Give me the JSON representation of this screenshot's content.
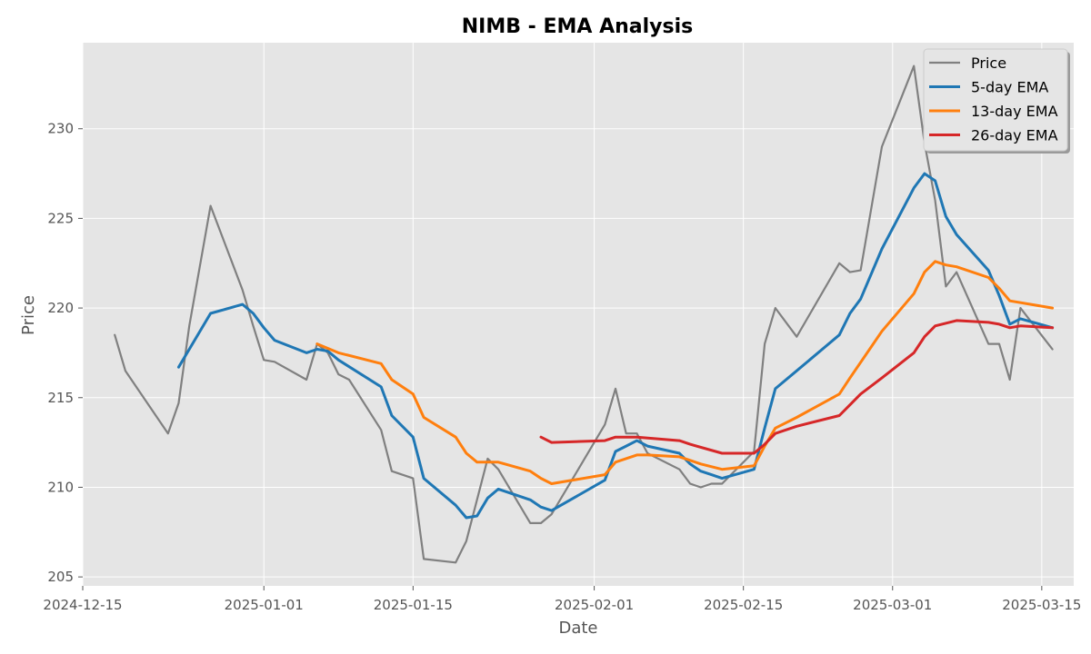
{
  "chart_data": {
    "type": "line",
    "title": "NIMB - EMA Analysis",
    "xlabel": "Date",
    "ylabel": "Price",
    "x_type": "date",
    "xlim": [
      "2024-12-15",
      "2025-03-18"
    ],
    "ylim": [
      204.5,
      234.8
    ],
    "x_ticks": [
      "2024-12-15",
      "2025-01-01",
      "2025-01-15",
      "2025-02-01",
      "2025-02-15",
      "2025-03-01",
      "2025-03-15"
    ],
    "y_ticks": [
      205,
      210,
      215,
      220,
      225,
      230
    ],
    "grid": true,
    "legend_position": "top-right",
    "background_color": "#E5E5E5",
    "series": [
      {
        "name": "Price",
        "color": "#808080",
        "points": [
          [
            "2024-12-18",
            218.5
          ],
          [
            "2024-12-19",
            216.5
          ],
          [
            "2024-12-23",
            213.0
          ],
          [
            "2024-12-24",
            214.7
          ],
          [
            "2024-12-25",
            219.0
          ],
          [
            "2024-12-27",
            225.7
          ],
          [
            "2024-12-30",
            221.0
          ],
          [
            "2024-12-31",
            219.0
          ],
          [
            "2025-01-01",
            217.1
          ],
          [
            "2025-01-02",
            217.0
          ],
          [
            "2025-01-05",
            216.0
          ],
          [
            "2025-01-06",
            218.0
          ],
          [
            "2025-01-07",
            217.5
          ],
          [
            "2025-01-08",
            216.3
          ],
          [
            "2025-01-09",
            216.0
          ],
          [
            "2025-01-12",
            213.2
          ],
          [
            "2025-01-13",
            210.9
          ],
          [
            "2025-01-15",
            210.5
          ],
          [
            "2025-01-16",
            206.0
          ],
          [
            "2025-01-19",
            205.8
          ],
          [
            "2025-01-20",
            207.0
          ],
          [
            "2025-01-22",
            211.6
          ],
          [
            "2025-01-23",
            211.0
          ],
          [
            "2025-01-26",
            208.0
          ],
          [
            "2025-01-27",
            208.0
          ],
          [
            "2025-01-28",
            208.5
          ],
          [
            "2025-02-01",
            212.5
          ],
          [
            "2025-02-02",
            213.5
          ],
          [
            "2025-02-03",
            215.5
          ],
          [
            "2025-02-04",
            213.0
          ],
          [
            "2025-02-05",
            213.0
          ],
          [
            "2025-02-06",
            211.9
          ],
          [
            "2025-02-09",
            211.0
          ],
          [
            "2025-02-10",
            210.2
          ],
          [
            "2025-02-11",
            210.0
          ],
          [
            "2025-02-12",
            210.2
          ],
          [
            "2025-02-13",
            210.2
          ],
          [
            "2025-02-16",
            212.0
          ],
          [
            "2025-02-17",
            218.0
          ],
          [
            "2025-02-18",
            220.0
          ],
          [
            "2025-02-20",
            218.4
          ],
          [
            "2025-02-24",
            222.5
          ],
          [
            "2025-02-25",
            222.0
          ],
          [
            "2025-02-26",
            222.1
          ],
          [
            "2025-02-28",
            229.0
          ],
          [
            "2025-03-03",
            233.5
          ],
          [
            "2025-03-04",
            229.2
          ],
          [
            "2025-03-05",
            226.0
          ],
          [
            "2025-03-06",
            221.2
          ],
          [
            "2025-03-07",
            222.0
          ],
          [
            "2025-03-10",
            218.0
          ],
          [
            "2025-03-11",
            218.0
          ],
          [
            "2025-03-12",
            216.0
          ],
          [
            "2025-03-13",
            220.0
          ],
          [
            "2025-03-16",
            217.7
          ]
        ]
      },
      {
        "name": "5-day EMA",
        "color": "#1F77B4",
        "points": [
          [
            "2024-12-24",
            216.7
          ],
          [
            "2024-12-27",
            219.7
          ],
          [
            "2024-12-30",
            220.2
          ],
          [
            "2024-12-31",
            219.7
          ],
          [
            "2025-01-01",
            218.9
          ],
          [
            "2025-01-02",
            218.2
          ],
          [
            "2025-01-05",
            217.5
          ],
          [
            "2025-01-06",
            217.7
          ],
          [
            "2025-01-07",
            217.6
          ],
          [
            "2025-01-08",
            217.1
          ],
          [
            "2025-01-12",
            215.6
          ],
          [
            "2025-01-13",
            214.0
          ],
          [
            "2025-01-15",
            212.8
          ],
          [
            "2025-01-16",
            210.5
          ],
          [
            "2025-01-19",
            209.0
          ],
          [
            "2025-01-20",
            208.3
          ],
          [
            "2025-01-21",
            208.4
          ],
          [
            "2025-01-22",
            209.4
          ],
          [
            "2025-01-23",
            209.9
          ],
          [
            "2025-01-26",
            209.3
          ],
          [
            "2025-01-27",
            208.9
          ],
          [
            "2025-01-28",
            208.7
          ],
          [
            "2025-02-02",
            210.4
          ],
          [
            "2025-02-03",
            212.0
          ],
          [
            "2025-02-04",
            212.3
          ],
          [
            "2025-02-05",
            212.6
          ],
          [
            "2025-02-06",
            212.3
          ],
          [
            "2025-02-09",
            211.9
          ],
          [
            "2025-02-10",
            211.3
          ],
          [
            "2025-02-11",
            210.9
          ],
          [
            "2025-02-12",
            210.7
          ],
          [
            "2025-02-13",
            210.5
          ],
          [
            "2025-02-16",
            211.0
          ],
          [
            "2025-02-17",
            213.3
          ],
          [
            "2025-02-18",
            215.5
          ],
          [
            "2025-02-20",
            216.5
          ],
          [
            "2025-02-24",
            218.5
          ],
          [
            "2025-02-25",
            219.7
          ],
          [
            "2025-02-26",
            220.5
          ],
          [
            "2025-02-28",
            223.3
          ],
          [
            "2025-03-03",
            226.7
          ],
          [
            "2025-03-04",
            227.5
          ],
          [
            "2025-03-05",
            227.1
          ],
          [
            "2025-03-06",
            225.1
          ],
          [
            "2025-03-07",
            224.1
          ],
          [
            "2025-03-10",
            222.1
          ],
          [
            "2025-03-11",
            220.7
          ],
          [
            "2025-03-12",
            219.1
          ],
          [
            "2025-03-13",
            219.4
          ],
          [
            "2025-03-16",
            218.9
          ]
        ]
      },
      {
        "name": "13-day EMA",
        "color": "#FF7F0E",
        "points": [
          [
            "2025-01-06",
            218.0
          ],
          [
            "2025-01-08",
            217.5
          ],
          [
            "2025-01-12",
            216.9
          ],
          [
            "2025-01-13",
            216.0
          ],
          [
            "2025-01-15",
            215.2
          ],
          [
            "2025-01-16",
            213.9
          ],
          [
            "2025-01-19",
            212.8
          ],
          [
            "2025-01-20",
            211.9
          ],
          [
            "2025-01-21",
            211.4
          ],
          [
            "2025-01-22",
            211.4
          ],
          [
            "2025-01-23",
            211.4
          ],
          [
            "2025-01-26",
            210.9
          ],
          [
            "2025-01-27",
            210.5
          ],
          [
            "2025-01-28",
            210.2
          ],
          [
            "2025-02-02",
            210.7
          ],
          [
            "2025-02-03",
            211.4
          ],
          [
            "2025-02-05",
            211.8
          ],
          [
            "2025-02-06",
            211.8
          ],
          [
            "2025-02-09",
            211.7
          ],
          [
            "2025-02-10",
            211.5
          ],
          [
            "2025-02-11",
            211.3
          ],
          [
            "2025-02-13",
            211.0
          ],
          [
            "2025-02-16",
            211.2
          ],
          [
            "2025-02-17",
            212.3
          ],
          [
            "2025-02-18",
            213.3
          ],
          [
            "2025-02-20",
            213.9
          ],
          [
            "2025-02-24",
            215.2
          ],
          [
            "2025-02-25",
            216.1
          ],
          [
            "2025-02-28",
            218.7
          ],
          [
            "2025-03-03",
            220.8
          ],
          [
            "2025-03-04",
            222.0
          ],
          [
            "2025-03-05",
            222.6
          ],
          [
            "2025-03-06",
            222.4
          ],
          [
            "2025-03-07",
            222.3
          ],
          [
            "2025-03-10",
            221.7
          ],
          [
            "2025-03-11",
            221.1
          ],
          [
            "2025-03-12",
            220.4
          ],
          [
            "2025-03-16",
            220.0
          ]
        ]
      },
      {
        "name": "26-day EMA",
        "color": "#D62728",
        "points": [
          [
            "2025-01-27",
            212.8
          ],
          [
            "2025-01-28",
            212.5
          ],
          [
            "2025-02-02",
            212.6
          ],
          [
            "2025-02-03",
            212.8
          ],
          [
            "2025-02-05",
            212.8
          ],
          [
            "2025-02-09",
            212.6
          ],
          [
            "2025-02-10",
            212.4
          ],
          [
            "2025-02-13",
            211.9
          ],
          [
            "2025-02-16",
            211.9
          ],
          [
            "2025-02-17",
            212.4
          ],
          [
            "2025-02-18",
            213.0
          ],
          [
            "2025-02-20",
            213.4
          ],
          [
            "2025-02-24",
            214.0
          ],
          [
            "2025-02-25",
            214.6
          ],
          [
            "2025-02-26",
            215.2
          ],
          [
            "2025-02-28",
            216.1
          ],
          [
            "2025-03-03",
            217.5
          ],
          [
            "2025-03-04",
            218.4
          ],
          [
            "2025-03-05",
            219.0
          ],
          [
            "2025-03-07",
            219.3
          ],
          [
            "2025-03-10",
            219.2
          ],
          [
            "2025-03-11",
            219.1
          ],
          [
            "2025-03-12",
            218.9
          ],
          [
            "2025-03-13",
            219.0
          ],
          [
            "2025-03-16",
            218.9
          ]
        ]
      }
    ]
  }
}
